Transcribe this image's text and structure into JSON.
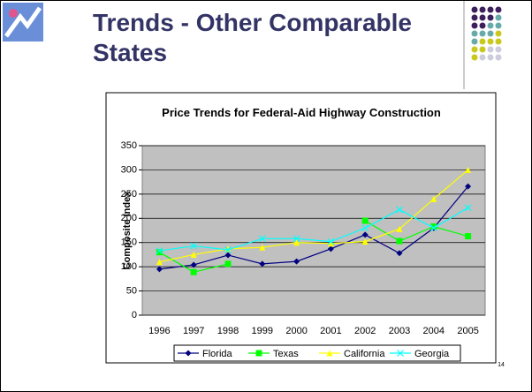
{
  "slide": {
    "title": "Trends - Other Comparable States",
    "page_number": "14"
  },
  "chart_data": {
    "type": "line",
    "title": "Price Trends for Federal-Aid Highway Construction",
    "y_label": "Composite Index",
    "categories": [
      "1996",
      "1997",
      "1998",
      "1999",
      "2000",
      "2001",
      "2002",
      "2003",
      "2004",
      "2005"
    ],
    "series": [
      {
        "name": "Florida",
        "color": "#000080",
        "marker": "diamond",
        "values": [
          95,
          104,
          124,
          106,
          111,
          137,
          166,
          128,
          180,
          266
        ]
      },
      {
        "name": "Texas",
        "color": "#00ff00",
        "marker": "square",
        "values": [
          130,
          89,
          106,
          null,
          null,
          null,
          195,
          153,
          183,
          163
        ]
      },
      {
        "name": "California",
        "color": "#ffff00",
        "marker": "triangle",
        "values": [
          110,
          125,
          137,
          140,
          150,
          148,
          152,
          178,
          240,
          300
        ]
      },
      {
        "name": "Georgia",
        "color": "#00ffff",
        "marker": "x",
        "values": [
          133,
          143,
          135,
          158,
          158,
          152,
          180,
          218,
          180,
          222
        ]
      }
    ],
    "ylim": [
      0,
      350
    ],
    "yticks": [
      0,
      50,
      100,
      150,
      200,
      250,
      300,
      350
    ],
    "grid": true,
    "legend": "bottom"
  }
}
